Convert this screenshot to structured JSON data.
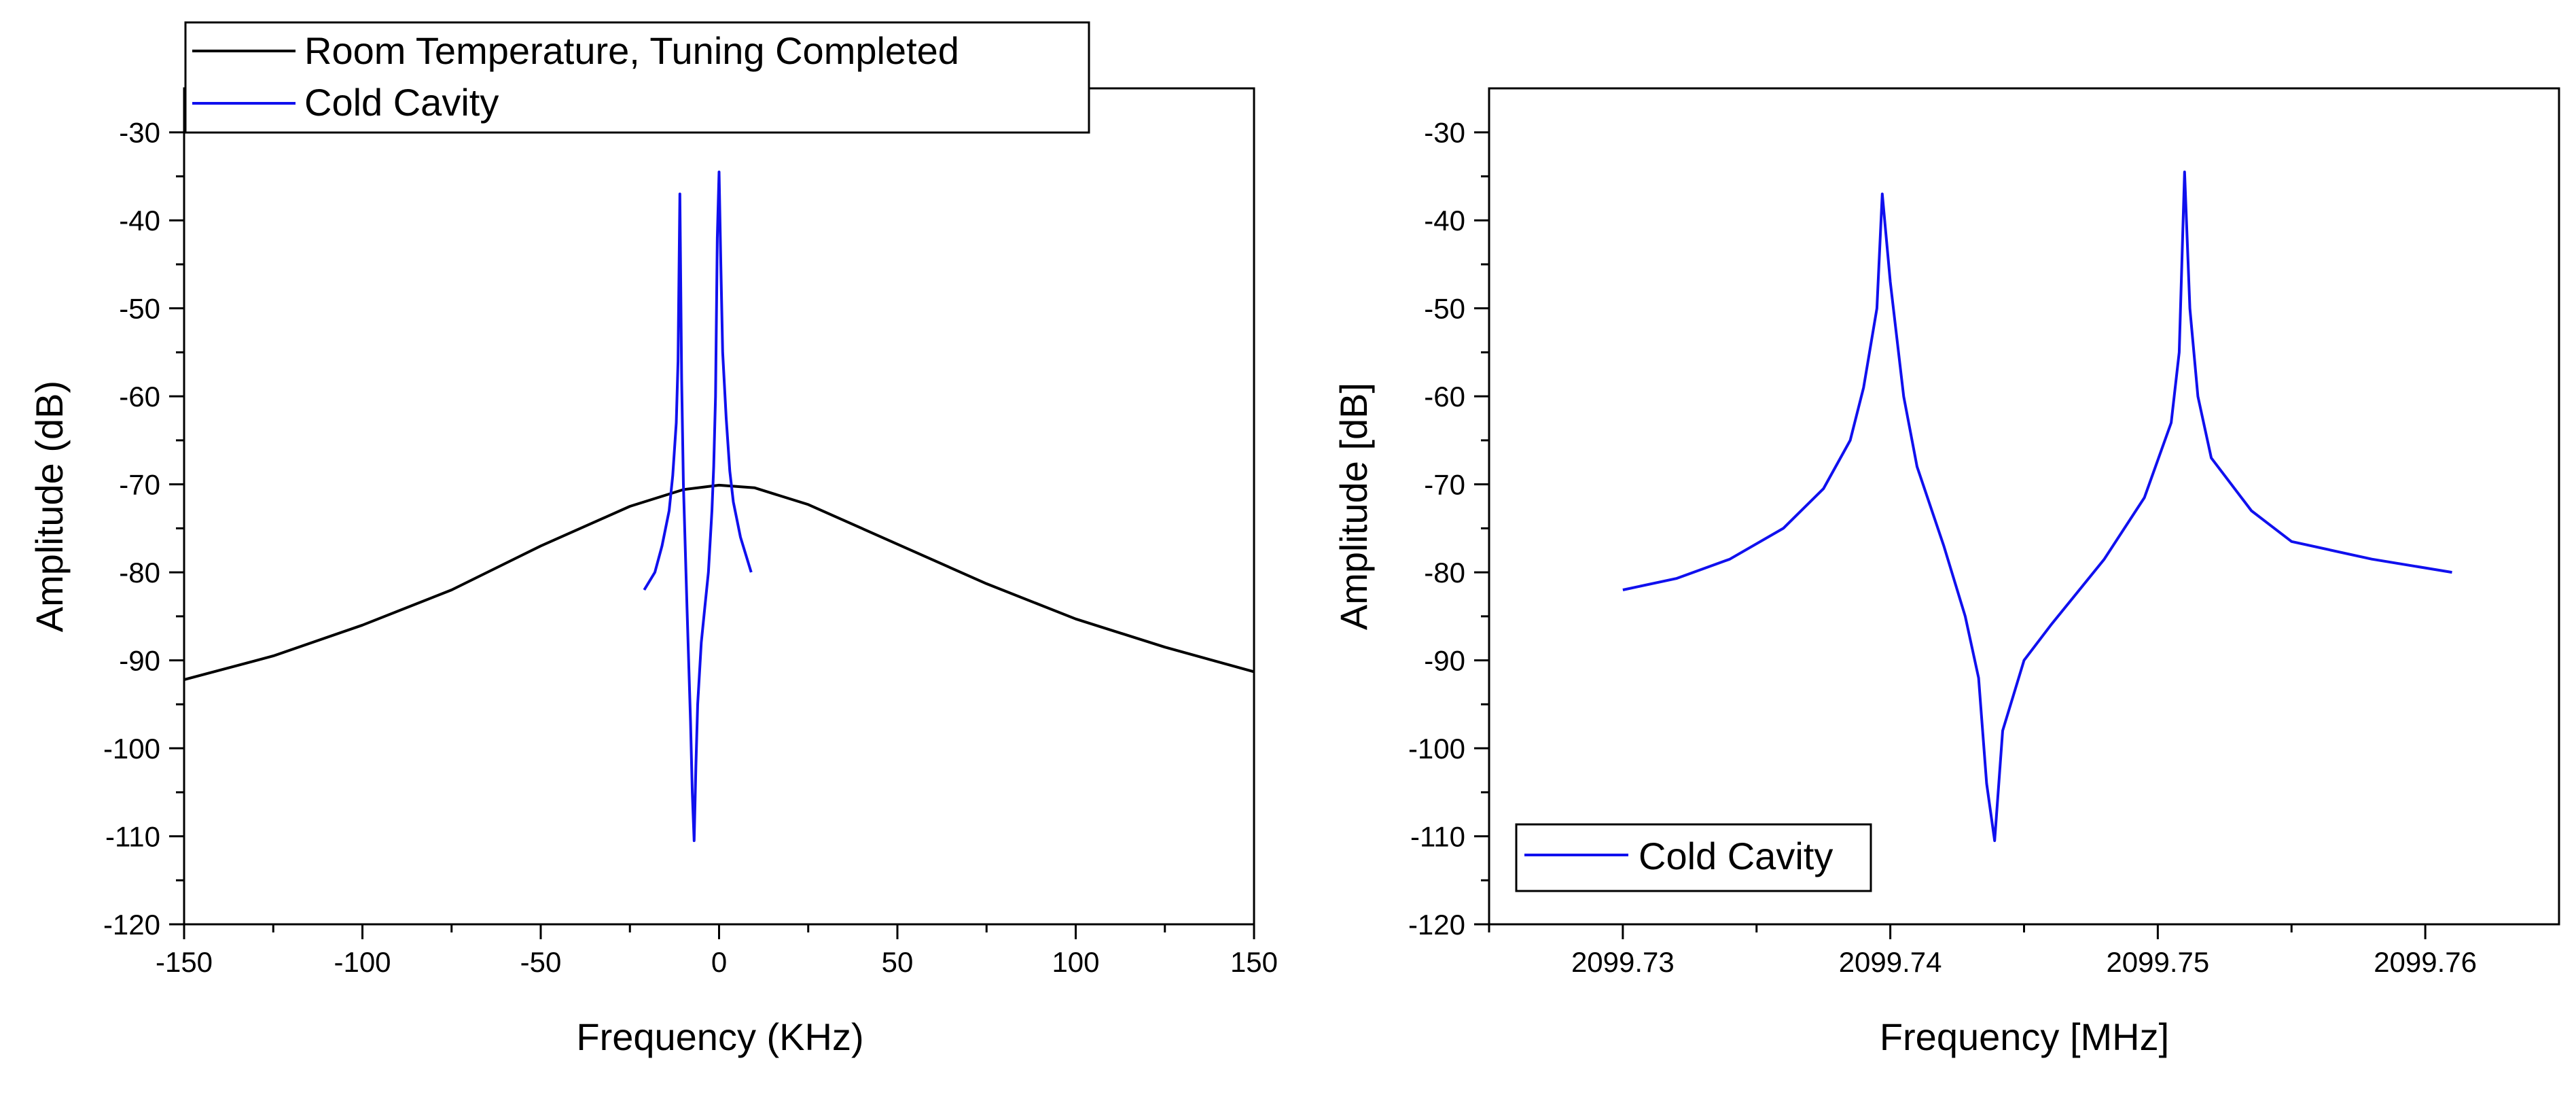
{
  "chart_data": [
    {
      "type": "line",
      "xlabel": "Frequency (KHz)",
      "ylabel": "Amplitude (dB)",
      "xlim": [
        -150,
        150
      ],
      "ylim": [
        -120,
        -25
      ],
      "xticks": [
        -150,
        -100,
        -50,
        0,
        50,
        100,
        150
      ],
      "yticks": [
        -120,
        -110,
        -100,
        -90,
        -80,
        -70,
        -60,
        -50,
        -40,
        -30
      ],
      "grid": false,
      "legend_position": "top-left",
      "series": [
        {
          "name": "Room Temperature, Tuning Completed",
          "color": "#000000",
          "x": [
            -150,
            -125,
            -100,
            -75,
            -50,
            -25,
            -10,
            0,
            10,
            25,
            50,
            75,
            100,
            125,
            150
          ],
          "y": [
            -92.2,
            -89.5,
            -86,
            -82,
            -77,
            -72.5,
            -70.6,
            -70.1,
            -70.4,
            -72.3,
            -76.8,
            -81.3,
            -85.3,
            -88.5,
            -91.3
          ]
        },
        {
          "name": "Cold Cavity",
          "color": "#1010ee",
          "x": [
            -21,
            -18,
            -16,
            -14,
            -13,
            -12,
            -11.5,
            -11,
            -10.5,
            -10,
            -9,
            -8,
            -7.5,
            -7,
            -6.5,
            -6,
            -5,
            -4,
            -3,
            -2,
            -1.5,
            -1,
            -0.5,
            0,
            0.5,
            1,
            2,
            3,
            4,
            6,
            9
          ],
          "y": [
            -82,
            -80,
            -77,
            -73,
            -69,
            -63,
            -56,
            -37,
            -58,
            -70,
            -84,
            -97,
            -105,
            -110.5,
            -102,
            -95,
            -88,
            -84,
            -80,
            -73,
            -68,
            -60,
            -42,
            -34.5,
            -45,
            -55,
            -62.5,
            -68.5,
            -72,
            -76,
            -80
          ]
        }
      ]
    },
    {
      "type": "line",
      "xlabel": "Frequency [MHz]",
      "ylabel": "Amplitude [dB]",
      "xlim": [
        2099.725,
        2099.765
      ],
      "ylim": [
        -120,
        -25
      ],
      "xticks": [
        2099.73,
        2099.74,
        2099.75,
        2099.76
      ],
      "xtick_labels": [
        "2099.73",
        "2099.74",
        "2099.75",
        "2099.76"
      ],
      "yticks": [
        -120,
        -110,
        -100,
        -90,
        -80,
        -70,
        -60,
        -50,
        -40,
        -30
      ],
      "grid": false,
      "legend_position": "bottom-left",
      "series": [
        {
          "name": "Cold Cavity",
          "color": "#1010ee",
          "x": [
            2099.73,
            2099.732,
            2099.734,
            2099.736,
            2099.7375,
            2099.7385,
            2099.739,
            2099.7395,
            2099.7397,
            2099.74,
            2099.7405,
            2099.741,
            2099.742,
            2099.7428,
            2099.7433,
            2099.7436,
            2099.7439,
            2099.7442,
            2099.745,
            2099.746,
            2099.748,
            2099.7495,
            2099.7505,
            2099.7508,
            2099.751,
            2099.7512,
            2099.7515,
            2099.752,
            2099.7535,
            2099.755,
            2099.758,
            2099.761
          ],
          "y": [
            -82,
            -80.7,
            -78.5,
            -75,
            -70.5,
            -65,
            -59,
            -50,
            -37,
            -47,
            -60,
            -68,
            -77,
            -85,
            -92,
            -104,
            -110.5,
            -98,
            -90,
            -86,
            -78.5,
            -71.5,
            -63,
            -55,
            -34.5,
            -50,
            -60,
            -67,
            -73,
            -76.5,
            -78.5,
            -80
          ]
        }
      ]
    }
  ]
}
